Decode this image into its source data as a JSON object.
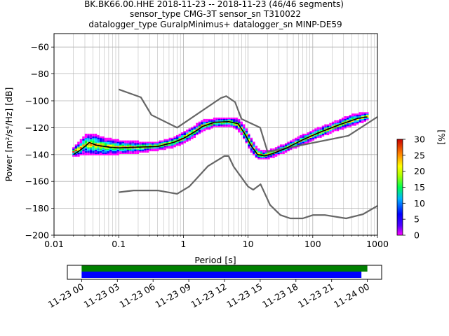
{
  "chart_data": {
    "type": "heatmap",
    "title_lines": [
      "BK.BK66.00.HHE   2018-11-23 -- 2018-11-23  (46/46 segments)",
      "sensor_type CMG-3T sensor_sn T310022",
      "datalogger_type GuralpMinimus+ datalogger_sn MINP-DE59"
    ],
    "xlabel": "Period [s]",
    "ylabel": "Power [m²/s⁴/Hz] [dB]",
    "xscale": "log",
    "xlim": [
      0.01,
      1000
    ],
    "ylim": [
      -200,
      -50
    ],
    "x_ticks": [
      0.01,
      0.1,
      1,
      10,
      100,
      1000
    ],
    "x_tick_labels": [
      "0.01",
      "0.1",
      "1",
      "10",
      "100",
      "1000"
    ],
    "y_ticks": [
      -60,
      -80,
      -100,
      -120,
      -140,
      -160,
      -180,
      -200
    ],
    "y_tick_labels": [
      "−60",
      "−80",
      "−100",
      "−120",
      "−140",
      "−160",
      "−180",
      "−200"
    ],
    "grid": true,
    "colorbar": {
      "label": "[%]",
      "min": 0,
      "max": 30,
      "ticks": [
        0,
        5,
        10,
        15,
        20,
        25,
        30
      ],
      "tick_labels": [
        "0",
        "5",
        "10",
        "15",
        "20",
        "25",
        "30"
      ]
    },
    "series": [
      {
        "name": "NHNM",
        "color": "#666666",
        "points": [
          [
            0.1,
            -91.5
          ],
          [
            0.22,
            -97.4
          ],
          [
            0.32,
            -110.5
          ],
          [
            0.8,
            -120
          ],
          [
            3.8,
            -97.9
          ],
          [
            4.6,
            -96.5
          ],
          [
            6.3,
            -101
          ],
          [
            7.9,
            -113.5
          ],
          [
            15.4,
            -120
          ],
          [
            20,
            -138
          ],
          [
            354.8,
            -126
          ],
          [
            1000,
            -112
          ]
        ]
      },
      {
        "name": "NLNM",
        "color": "#666666",
        "points": [
          [
            0.1,
            -168
          ],
          [
            0.17,
            -166.7
          ],
          [
            0.4,
            -166.7
          ],
          [
            0.8,
            -169.2
          ],
          [
            1.24,
            -163.7
          ],
          [
            2.4,
            -148.6
          ],
          [
            4.3,
            -141.1
          ],
          [
            5,
            -141.1
          ],
          [
            6,
            -149
          ],
          [
            10,
            -163.8
          ],
          [
            12,
            -166.2
          ],
          [
            15.6,
            -162.1
          ],
          [
            21.9,
            -177.5
          ],
          [
            31.6,
            -185
          ],
          [
            45,
            -187.5
          ],
          [
            70,
            -187.5
          ],
          [
            101,
            -185
          ],
          [
            154,
            -185
          ],
          [
            328,
            -187.5
          ],
          [
            600,
            -184.4
          ],
          [
            1000,
            -178.2
          ]
        ]
      },
      {
        "name": "Mode",
        "color": "#000000",
        "points": [
          [
            0.02,
            -140
          ],
          [
            0.025,
            -137
          ],
          [
            0.03,
            -134
          ],
          [
            0.035,
            -131
          ],
          [
            0.045,
            -133
          ],
          [
            0.07,
            -134.5
          ],
          [
            0.1,
            -135
          ],
          [
            0.2,
            -134.5
          ],
          [
            0.4,
            -134
          ],
          [
            0.7,
            -131
          ],
          [
            1,
            -128
          ],
          [
            1.5,
            -123
          ],
          [
            2,
            -119
          ],
          [
            3,
            -116
          ],
          [
            5,
            -115.5
          ],
          [
            7,
            -117
          ],
          [
            9,
            -125
          ],
          [
            11,
            -133
          ],
          [
            14,
            -140
          ],
          [
            18,
            -141
          ],
          [
            25,
            -139
          ],
          [
            40,
            -135
          ],
          [
            70,
            -129
          ],
          [
            120,
            -124
          ],
          [
            250,
            -118
          ],
          [
            500,
            -113
          ],
          [
            700,
            -112
          ]
        ]
      }
    ],
    "psd_band": [
      [
        0.02,
        -141,
        -135
      ],
      [
        0.025,
        -140,
        -131
      ],
      [
        0.03,
        -139,
        -126
      ],
      [
        0.04,
        -140,
        -125
      ],
      [
        0.06,
        -140,
        -128
      ],
      [
        0.1,
        -139,
        -130
      ],
      [
        0.2,
        -138,
        -131
      ],
      [
        0.4,
        -136,
        -131
      ],
      [
        0.7,
        -134,
        -128
      ],
      [
        1,
        -131,
        -124
      ],
      [
        1.5,
        -126,
        -119
      ],
      [
        2,
        -122,
        -115
      ],
      [
        3,
        -119,
        -114
      ],
      [
        5,
        -118,
        -113
      ],
      [
        7,
        -121,
        -114
      ],
      [
        9,
        -129,
        -120
      ],
      [
        11,
        -137,
        -128
      ],
      [
        14,
        -143,
        -136
      ],
      [
        18,
        -143,
        -138
      ],
      [
        25,
        -141,
        -136
      ],
      [
        40,
        -137,
        -132
      ],
      [
        70,
        -132,
        -126
      ],
      [
        120,
        -127,
        -121
      ],
      [
        250,
        -121,
        -115
      ],
      [
        400,
        -118,
        -111
      ],
      [
        700,
        -114,
        -109
      ]
    ],
    "timeline": {
      "tick_labels": [
        "11-23 00",
        "11-23 03",
        "11-23 06",
        "11-23 09",
        "11-23 12",
        "11-23 15",
        "11-23 18",
        "11-23 21",
        "11-24 00"
      ],
      "tick_hours": [
        0,
        3,
        6,
        9,
        12,
        15,
        18,
        21,
        24
      ],
      "xlim_hours": [
        -1.2,
        25.2
      ],
      "bars": [
        {
          "color": "#008000",
          "start_hours": 0,
          "end_hours": 24.0
        },
        {
          "color": "#0000ff",
          "start_hours": 0,
          "end_hours": 23.5
        }
      ]
    }
  }
}
